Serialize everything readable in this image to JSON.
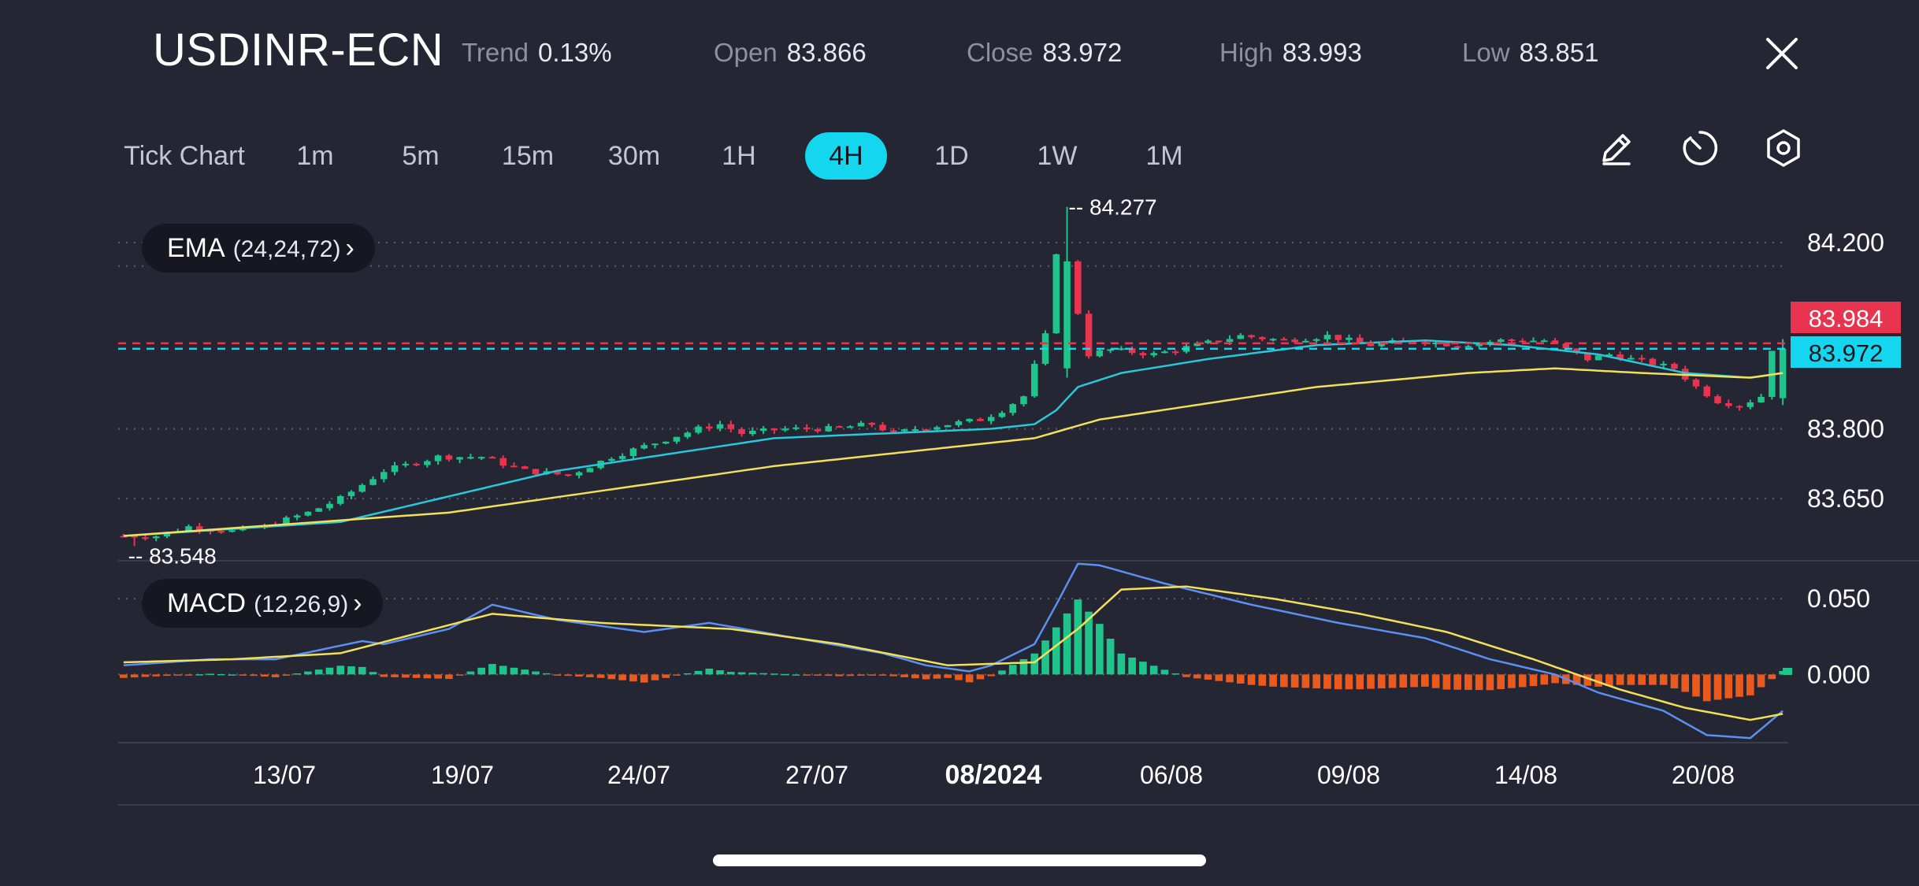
{
  "header": {
    "symbol": "USDINR-ECN",
    "trend_label": "Trend",
    "trend_value": "0.13%",
    "open_label": "Open",
    "open_value": "83.866",
    "close_label": "Close",
    "close_value": "83.972",
    "high_label": "High",
    "high_value": "83.993",
    "low_label": "Low",
    "low_value": "83.851",
    "close_icon": "close-x-icon"
  },
  "timeframes": [
    "Tick Chart",
    "1m",
    "5m",
    "15m",
    "30m",
    "1H",
    "4H",
    "1D",
    "1W",
    "1M"
  ],
  "active_timeframe": "4H",
  "tools": [
    "pencil-icon",
    "timer-icon",
    "settings-hexagon-icon"
  ],
  "colors": {
    "background": "#242634",
    "bull": "#1fc48b",
    "bear": "#e8344e",
    "ema_fast": "#28c7da",
    "ema_slow": "#f2e05a",
    "macd_line": "#5b8ff0",
    "signal_line": "#f2e05a",
    "hist_pos": "#1fc48b",
    "hist_neg": "#ea5a1e",
    "accent": "#14d6ef"
  },
  "chart_data": {
    "type": "candlestick",
    "symbol": "USDINR-ECN",
    "interval": "4H",
    "x_ticks": [
      "13/07",
      "19/07",
      "24/07",
      "27/07",
      "08/2024",
      "06/08",
      "09/08",
      "14/08",
      "20/08"
    ],
    "x_tick_emphasis": "08/2024",
    "price_axis": {
      "ticks": [
        "84.200",
        "83.800",
        "83.650"
      ],
      "ylim": [
        83.52,
        84.29
      ]
    },
    "price_markers": {
      "high_label": "-- 84.277",
      "low_label": "-- 83.548",
      "high": 84.277,
      "low": 83.548
    },
    "price_tags": [
      {
        "value": "83.984",
        "color": "#e8344e"
      },
      {
        "value": "83.972",
        "color": "#14d6ef"
      }
    ],
    "ohlc_last": {
      "open": 83.866,
      "high": 83.993,
      "low": 83.851,
      "close": 83.972
    },
    "indicators": {
      "ema": {
        "name": "EMA",
        "params": "(24,24,72)"
      },
      "macd": {
        "name": "MACD",
        "params": "(12,26,9)",
        "ticks": [
          "0.050",
          "0.000"
        ],
        "ylim": [
          -0.045,
          0.075
        ]
      }
    },
    "price_path": [
      [
        0,
        83.57
      ],
      [
        4,
        83.57
      ],
      [
        7,
        83.59
      ],
      [
        11,
        83.58
      ],
      [
        14,
        83.59
      ],
      [
        18,
        83.62
      ],
      [
        21,
        83.65
      ],
      [
        25,
        83.71
      ],
      [
        30,
        83.74
      ],
      [
        34,
        83.74
      ],
      [
        38,
        83.71
      ],
      [
        42,
        83.7
      ],
      [
        46,
        83.74
      ],
      [
        50,
        83.77
      ],
      [
        54,
        83.8
      ],
      [
        56,
        83.81
      ],
      [
        58,
        83.79
      ],
      [
        62,
        83.8
      ],
      [
        66,
        83.8
      ],
      [
        70,
        83.81
      ],
      [
        72,
        83.79
      ],
      [
        74,
        83.8
      ],
      [
        80,
        83.82
      ],
      [
        82,
        83.84
      ],
      [
        84,
        83.87
      ],
      [
        86,
        84.0
      ],
      [
        87,
        84.18
      ],
      [
        88,
        84.12
      ],
      [
        89,
        84.05
      ],
      [
        90,
        83.96
      ],
      [
        92,
        83.97
      ],
      [
        96,
        83.96
      ],
      [
        100,
        83.98
      ],
      [
        104,
        84.0
      ],
      [
        108,
        83.99
      ],
      [
        112,
        84.0
      ],
      [
        116,
        83.98
      ],
      [
        120,
        83.99
      ],
      [
        124,
        83.98
      ],
      [
        128,
        83.99
      ],
      [
        132,
        83.99
      ],
      [
        136,
        83.95
      ],
      [
        138,
        83.96
      ],
      [
        140,
        83.95
      ],
      [
        142,
        83.94
      ],
      [
        144,
        83.93
      ],
      [
        146,
        83.89
      ],
      [
        148,
        83.86
      ],
      [
        150,
        83.85
      ],
      [
        152,
        83.87
      ],
      [
        153,
        83.972
      ]
    ],
    "ema_fast_path": [
      [
        0,
        83.57
      ],
      [
        20,
        83.6
      ],
      [
        40,
        83.71
      ],
      [
        60,
        83.78
      ],
      [
        80,
        83.8
      ],
      [
        84,
        83.81
      ],
      [
        86,
        83.84
      ],
      [
        88,
        83.89
      ],
      [
        92,
        83.92
      ],
      [
        100,
        83.95
      ],
      [
        110,
        83.98
      ],
      [
        120,
        83.99
      ],
      [
        128,
        83.98
      ],
      [
        136,
        83.96
      ],
      [
        144,
        83.92
      ],
      [
        150,
        83.91
      ],
      [
        153,
        83.92
      ]
    ],
    "ema_slow_path": [
      [
        0,
        83.57
      ],
      [
        30,
        83.62
      ],
      [
        60,
        83.72
      ],
      [
        84,
        83.78
      ],
      [
        90,
        83.82
      ],
      [
        110,
        83.89
      ],
      [
        124,
        83.92
      ],
      [
        132,
        83.93
      ],
      [
        140,
        83.92
      ],
      [
        150,
        83.91
      ],
      [
        153,
        83.92
      ]
    ],
    "macd_path": [
      [
        0,
        0.006
      ],
      [
        8,
        0.01
      ],
      [
        14,
        0.01
      ],
      [
        18,
        0.016
      ],
      [
        22,
        0.022
      ],
      [
        24,
        0.02
      ],
      [
        30,
        0.03
      ],
      [
        34,
        0.046
      ],
      [
        40,
        0.036
      ],
      [
        48,
        0.028
      ],
      [
        54,
        0.034
      ],
      [
        62,
        0.024
      ],
      [
        70,
        0.014
      ],
      [
        74,
        0.006
      ],
      [
        78,
        0.002
      ],
      [
        80,
        0.006
      ],
      [
        84,
        0.02
      ],
      [
        86,
        0.046
      ],
      [
        88,
        0.073
      ],
      [
        90,
        0.072
      ],
      [
        96,
        0.06
      ],
      [
        104,
        0.046
      ],
      [
        112,
        0.034
      ],
      [
        120,
        0.024
      ],
      [
        126,
        0.01
      ],
      [
        132,
        0.0
      ],
      [
        136,
        -0.012
      ],
      [
        142,
        -0.024
      ],
      [
        146,
        -0.04
      ],
      [
        150,
        -0.042
      ],
      [
        153,
        -0.024
      ]
    ],
    "signal_path": [
      [
        0,
        0.008
      ],
      [
        10,
        0.01
      ],
      [
        20,
        0.014
      ],
      [
        34,
        0.04
      ],
      [
        44,
        0.034
      ],
      [
        56,
        0.03
      ],
      [
        66,
        0.02
      ],
      [
        76,
        0.006
      ],
      [
        84,
        0.008
      ],
      [
        88,
        0.03
      ],
      [
        92,
        0.056
      ],
      [
        98,
        0.058
      ],
      [
        106,
        0.05
      ],
      [
        114,
        0.04
      ],
      [
        122,
        0.028
      ],
      [
        130,
        0.01
      ],
      [
        138,
        -0.01
      ],
      [
        144,
        -0.022
      ],
      [
        150,
        -0.03
      ],
      [
        153,
        -0.026
      ]
    ]
  }
}
